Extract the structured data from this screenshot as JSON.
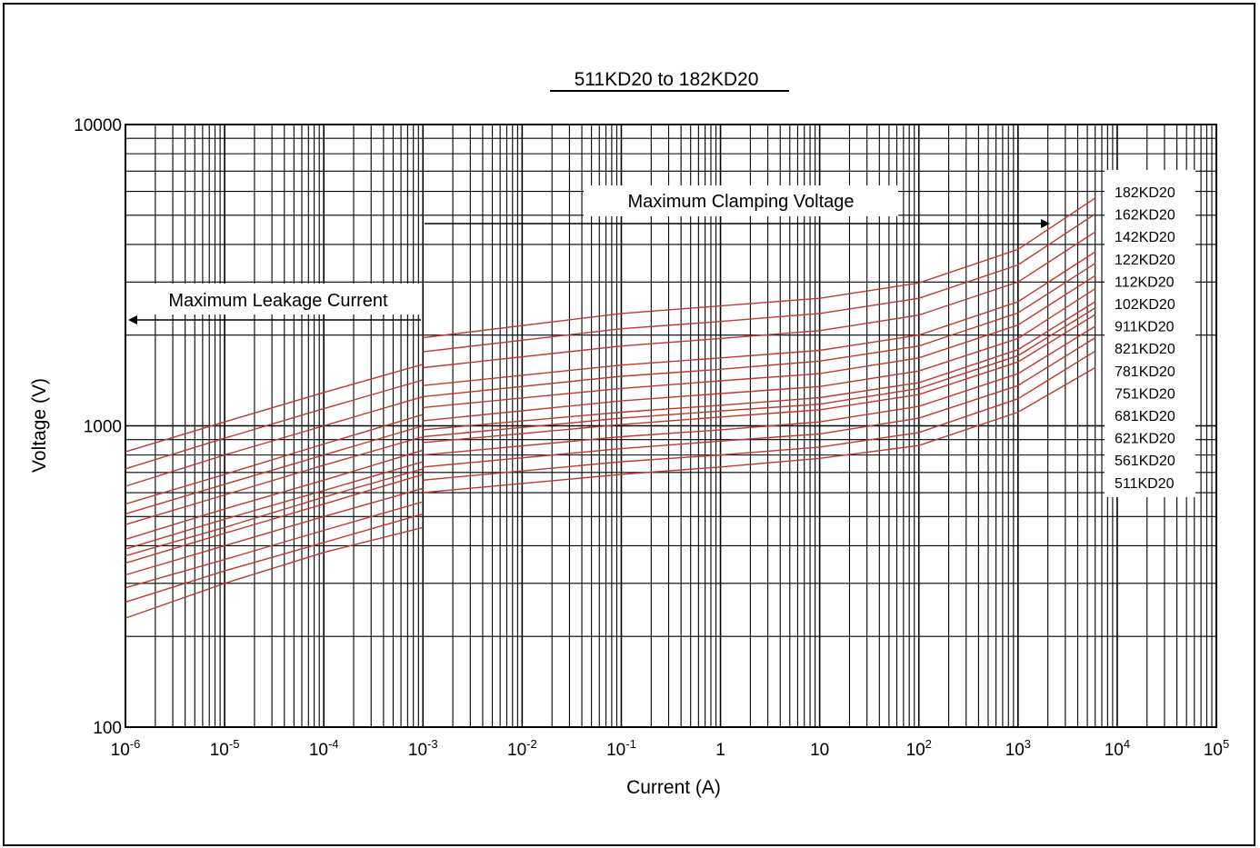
{
  "chart_data": {
    "type": "line",
    "title": "511KD20 to 182KD20",
    "xlabel": "Current (A)",
    "ylabel": "Voltage (V)",
    "x_scale": "log",
    "y_scale": "log",
    "xlim": [
      1e-06,
      100000
    ],
    "ylim": [
      100,
      10000
    ],
    "grid": true,
    "x_ticks": [
      {
        "base": "10",
        "exp": "-6"
      },
      {
        "base": "10",
        "exp": "-5"
      },
      {
        "base": "10",
        "exp": "-4"
      },
      {
        "base": "10",
        "exp": "-3"
      },
      {
        "base": "10",
        "exp": "-2"
      },
      {
        "base": "10",
        "exp": "-1"
      },
      {
        "base": "1",
        "exp": ""
      },
      {
        "base": "10",
        "exp": ""
      },
      {
        "base": "10",
        "exp": "2"
      },
      {
        "base": "10",
        "exp": "3"
      },
      {
        "base": "10",
        "exp": "4"
      },
      {
        "base": "10",
        "exp": "5"
      }
    ],
    "y_ticks": [
      "100",
      "1000",
      "10000"
    ],
    "annotations": {
      "leakage": "Maximum Leakage Current",
      "clamping": "Maximum Clamping Voltage"
    },
    "legend_position": "right",
    "series_color": "#c0392b",
    "series": [
      {
        "name": "182KD20",
        "leakage": [
          [
            1e-06,
            820
          ],
          [
            1e-05,
            1030
          ],
          [
            0.0001,
            1290
          ],
          [
            0.001,
            1600
          ]
        ],
        "clamping": [
          [
            0.001,
            1960
          ],
          [
            0.1,
            2360
          ],
          [
            1,
            2500
          ],
          [
            10,
            2650
          ],
          [
            100,
            2980
          ],
          [
            1000,
            3850
          ],
          [
            6000,
            5700
          ]
        ]
      },
      {
        "name": "162KD20",
        "leakage": [
          [
            1e-06,
            720
          ],
          [
            1e-05,
            910
          ],
          [
            0.0001,
            1140
          ],
          [
            0.001,
            1420
          ]
        ],
        "clamping": [
          [
            0.001,
            1760
          ],
          [
            0.1,
            2100
          ],
          [
            1,
            2220
          ],
          [
            10,
            2360
          ],
          [
            100,
            2650
          ],
          [
            1000,
            3420
          ],
          [
            6000,
            5050
          ]
        ]
      },
      {
        "name": "142KD20",
        "leakage": [
          [
            1e-06,
            630
          ],
          [
            1e-05,
            800
          ],
          [
            0.0001,
            1000
          ],
          [
            0.001,
            1250
          ]
        ],
        "clamping": [
          [
            0.001,
            1560
          ],
          [
            0.1,
            1840
          ],
          [
            1,
            1950
          ],
          [
            10,
            2070
          ],
          [
            100,
            2330
          ],
          [
            1000,
            3000
          ],
          [
            6000,
            4400
          ]
        ]
      },
      {
        "name": "122KD20",
        "leakage": [
          [
            1e-06,
            550
          ],
          [
            1e-05,
            690
          ],
          [
            0.0001,
            870
          ],
          [
            0.001,
            1090
          ]
        ],
        "clamping": [
          [
            0.001,
            1360
          ],
          [
            0.1,
            1590
          ],
          [
            1,
            1680
          ],
          [
            10,
            1780
          ],
          [
            100,
            2000
          ],
          [
            1000,
            2580
          ],
          [
            6000,
            3780
          ]
        ]
      },
      {
        "name": "112KD20",
        "leakage": [
          [
            1e-06,
            510
          ],
          [
            1e-05,
            640
          ],
          [
            0.0001,
            800
          ],
          [
            0.001,
            1000
          ]
        ],
        "clamping": [
          [
            0.001,
            1250
          ],
          [
            0.1,
            1460
          ],
          [
            1,
            1540
          ],
          [
            10,
            1640
          ],
          [
            100,
            1840
          ],
          [
            1000,
            2370
          ],
          [
            6000,
            3460
          ]
        ]
      },
      {
        "name": "102KD20",
        "leakage": [
          [
            1e-06,
            470
          ],
          [
            1e-05,
            590
          ],
          [
            0.0001,
            740
          ],
          [
            0.001,
            920
          ]
        ],
        "clamping": [
          [
            0.001,
            1150
          ],
          [
            0.1,
            1330
          ],
          [
            1,
            1410
          ],
          [
            10,
            1490
          ],
          [
            100,
            1680
          ],
          [
            1000,
            2160
          ],
          [
            6000,
            3150
          ]
        ]
      },
      {
        "name": "911KD20",
        "leakage": [
          [
            1e-06,
            420
          ],
          [
            1e-05,
            530
          ],
          [
            0.0001,
            660
          ],
          [
            0.001,
            830
          ]
        ],
        "clamping": [
          [
            0.001,
            1040
          ],
          [
            0.1,
            1210
          ],
          [
            1,
            1280
          ],
          [
            10,
            1350
          ],
          [
            100,
            1520
          ],
          [
            1000,
            1950
          ],
          [
            6000,
            2850
          ]
        ]
      },
      {
        "name": "821KD20",
        "leakage": [
          [
            1e-06,
            390
          ],
          [
            1e-05,
            490
          ],
          [
            0.0001,
            610
          ],
          [
            0.001,
            760
          ]
        ],
        "clamping": [
          [
            0.001,
            970
          ],
          [
            0.1,
            1110
          ],
          [
            1,
            1170
          ],
          [
            10,
            1240
          ],
          [
            100,
            1390
          ],
          [
            1000,
            1790
          ],
          [
            6000,
            2580
          ]
        ]
      },
      {
        "name": "781KD20",
        "leakage": [
          [
            1e-06,
            370
          ],
          [
            1e-05,
            460
          ],
          [
            0.0001,
            580
          ],
          [
            0.001,
            720
          ]
        ],
        "clamping": [
          [
            0.001,
            920
          ],
          [
            0.1,
            1060
          ],
          [
            1,
            1120
          ],
          [
            10,
            1180
          ],
          [
            100,
            1330
          ],
          [
            1000,
            1710
          ],
          [
            6000,
            2460
          ]
        ]
      },
      {
        "name": "751KD20",
        "leakage": [
          [
            1e-06,
            350
          ],
          [
            1e-05,
            440
          ],
          [
            0.0001,
            550
          ],
          [
            0.001,
            690
          ]
        ],
        "clamping": [
          [
            0.001,
            880
          ],
          [
            0.1,
            1010
          ],
          [
            1,
            1070
          ],
          [
            10,
            1130
          ],
          [
            100,
            1270
          ],
          [
            1000,
            1630
          ],
          [
            6000,
            2340
          ]
        ]
      },
      {
        "name": "681KD20",
        "leakage": [
          [
            1e-06,
            320
          ],
          [
            1e-05,
            400
          ],
          [
            0.0001,
            500
          ],
          [
            0.001,
            620
          ]
        ],
        "clamping": [
          [
            0.001,
            800
          ],
          [
            0.1,
            920
          ],
          [
            1,
            970
          ],
          [
            10,
            1030
          ],
          [
            100,
            1160
          ],
          [
            1000,
            1490
          ],
          [
            6000,
            2140
          ]
        ]
      },
      {
        "name": "621KD20",
        "leakage": [
          [
            1e-06,
            290
          ],
          [
            1e-05,
            360
          ],
          [
            0.0001,
            450
          ],
          [
            0.001,
            560
          ]
        ],
        "clamping": [
          [
            0.001,
            730
          ],
          [
            0.1,
            840
          ],
          [
            1,
            890
          ],
          [
            10,
            940
          ],
          [
            100,
            1060
          ],
          [
            1000,
            1360
          ],
          [
            6000,
            1960
          ]
        ]
      },
      {
        "name": "561KD20",
        "leakage": [
          [
            1e-06,
            260
          ],
          [
            1e-05,
            330
          ],
          [
            0.0001,
            410
          ],
          [
            0.001,
            510
          ]
        ],
        "clamping": [
          [
            0.001,
            660
          ],
          [
            0.1,
            760
          ],
          [
            1,
            800
          ],
          [
            10,
            850
          ],
          [
            100,
            950
          ],
          [
            1000,
            1230
          ],
          [
            6000,
            1770
          ]
        ]
      },
      {
        "name": "511KD20",
        "leakage": [
          [
            1e-06,
            230
          ],
          [
            1e-05,
            300
          ],
          [
            0.0001,
            380
          ],
          [
            0.001,
            460
          ]
        ],
        "clamping": [
          [
            0.001,
            600
          ],
          [
            0.1,
            690
          ],
          [
            1,
            730
          ],
          [
            10,
            780
          ],
          [
            100,
            860
          ],
          [
            1000,
            1110
          ],
          [
            6000,
            1560
          ]
        ]
      }
    ]
  }
}
